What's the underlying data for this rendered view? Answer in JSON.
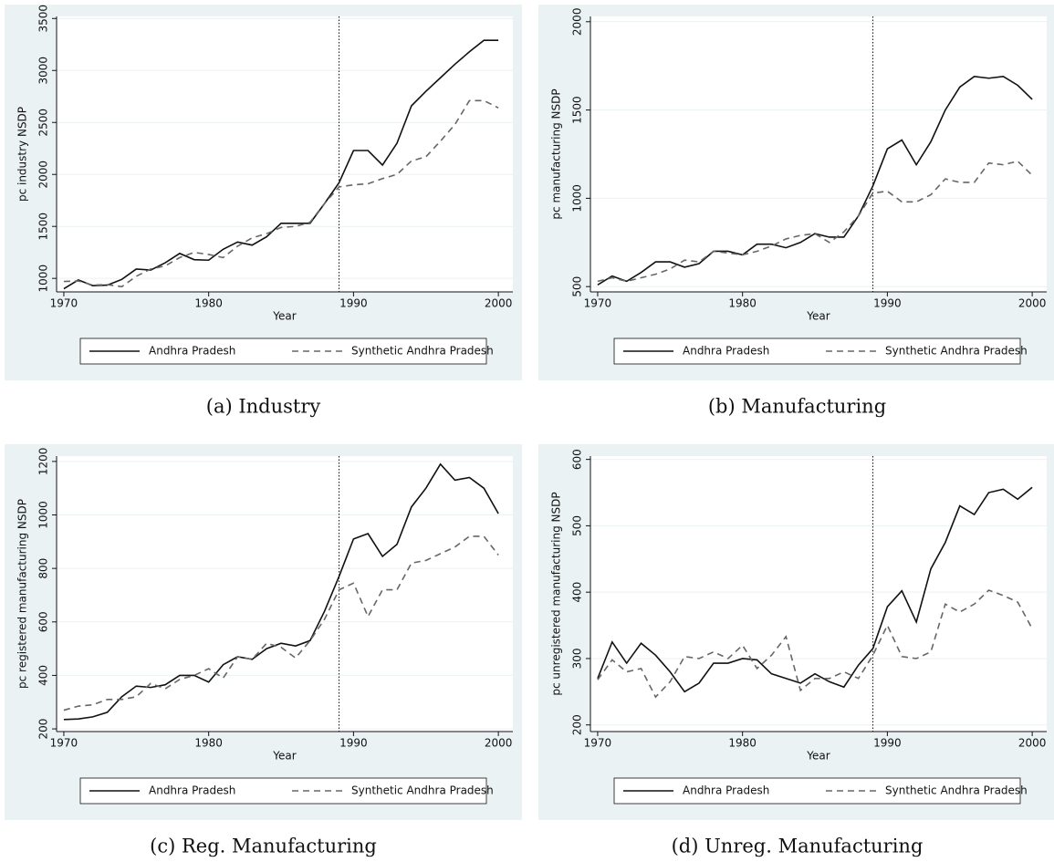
{
  "chart_data": [
    {
      "type": "line",
      "caption": "(a) Industry",
      "ylabel": "pc industry NSDP",
      "xlabel": "Year",
      "x": [
        1970,
        1971,
        1972,
        1973,
        1974,
        1975,
        1976,
        1977,
        1978,
        1979,
        1980,
        1981,
        1982,
        1983,
        1984,
        1985,
        1986,
        1987,
        1988,
        1989,
        1990,
        1991,
        1992,
        1993,
        1994,
        1995,
        1996,
        1997,
        1998,
        1999,
        2000
      ],
      "series": [
        {
          "name": "Andhra Pradesh",
          "color": "#111111",
          "dash": false,
          "values": [
            900,
            985,
            930,
            935,
            990,
            1090,
            1080,
            1150,
            1240,
            1180,
            1175,
            1280,
            1350,
            1320,
            1400,
            1530,
            1530,
            1530,
            1720,
            1920,
            2230,
            2230,
            2090,
            2300,
            2660,
            2800,
            2930,
            3060,
            3180,
            3290,
            3290
          ]
        },
        {
          "name": "Synthetic Andhra Pradesh",
          "color": "#666666",
          "dash": true,
          "values": [
            970,
            975,
            935,
            940,
            920,
            1020,
            1090,
            1120,
            1200,
            1250,
            1230,
            1200,
            1310,
            1390,
            1430,
            1490,
            1500,
            1540,
            1720,
            1880,
            1900,
            1910,
            1960,
            2000,
            2130,
            2170,
            2320,
            2480,
            2710,
            2710,
            2640
          ]
        }
      ],
      "xlim": [
        1969.5,
        2001
      ],
      "xticks": [
        1970,
        1980,
        1990,
        2000
      ],
      "ylim": [
        870,
        3520
      ],
      "yticks": [
        1000,
        1500,
        2000,
        2500,
        3000,
        3500
      ],
      "grid": true,
      "vline": 1989
    },
    {
      "type": "line",
      "caption": "(b) Manufacturing",
      "ylabel": "pc manufacturing NSDP",
      "xlabel": "Year",
      "x": [
        1970,
        1971,
        1972,
        1973,
        1974,
        1975,
        1976,
        1977,
        1978,
        1979,
        1980,
        1981,
        1982,
        1983,
        1984,
        1985,
        1986,
        1987,
        1988,
        1989,
        1990,
        1991,
        1992,
        1993,
        1994,
        1995,
        1996,
        1997,
        1998,
        1999,
        2000
      ],
      "series": [
        {
          "name": "Andhra Pradesh",
          "color": "#111111",
          "dash": false,
          "values": [
            510,
            560,
            530,
            580,
            640,
            640,
            610,
            630,
            700,
            700,
            680,
            740,
            740,
            720,
            750,
            800,
            780,
            780,
            900,
            1070,
            1280,
            1330,
            1190,
            1320,
            1500,
            1630,
            1690,
            1680,
            1690,
            1640,
            1560
          ]
        },
        {
          "name": "Synthetic Andhra Pradesh",
          "color": "#666666",
          "dash": true,
          "values": [
            530,
            550,
            530,
            550,
            570,
            600,
            650,
            640,
            700,
            690,
            680,
            700,
            730,
            770,
            790,
            800,
            750,
            810,
            900,
            1030,
            1040,
            980,
            980,
            1020,
            1110,
            1090,
            1090,
            1200,
            1190,
            1210,
            1130
          ]
        }
      ],
      "xlim": [
        1969.5,
        2001
      ],
      "xticks": [
        1970,
        1980,
        1990,
        2000
      ],
      "ylim": [
        470,
        2030
      ],
      "yticks": [
        500,
        1000,
        1500,
        2000
      ],
      "grid": true,
      "vline": 1989
    },
    {
      "type": "line",
      "caption": "(c) Reg. Manufacturing",
      "ylabel": "pc registered manufacturing NSDP",
      "xlabel": "Year",
      "x": [
        1970,
        1971,
        1972,
        1973,
        1974,
        1975,
        1976,
        1977,
        1978,
        1979,
        1980,
        1981,
        1982,
        1983,
        1984,
        1985,
        1986,
        1987,
        1988,
        1989,
        1990,
        1991,
        1992,
        1993,
        1994,
        1995,
        1996,
        1997,
        1998,
        1999,
        2000
      ],
      "series": [
        {
          "name": "Andhra Pradesh",
          "color": "#111111",
          "dash": false,
          "values": [
            235,
            237,
            245,
            262,
            320,
            360,
            355,
            365,
            400,
            400,
            375,
            440,
            470,
            460,
            500,
            520,
            510,
            530,
            640,
            770,
            910,
            930,
            845,
            890,
            1030,
            1100,
            1190,
            1130,
            1140,
            1100,
            1005
          ]
        },
        {
          "name": "Synthetic Andhra Pradesh",
          "color": "#666666",
          "dash": true,
          "values": [
            270,
            285,
            290,
            310,
            310,
            320,
            370,
            350,
            385,
            400,
            425,
            390,
            470,
            460,
            520,
            505,
            465,
            530,
            610,
            720,
            745,
            620,
            720,
            720,
            820,
            830,
            855,
            880,
            920,
            920,
            850
          ]
        }
      ],
      "xlim": [
        1969.5,
        2001
      ],
      "xticks": [
        1970,
        1980,
        1990,
        2000
      ],
      "ylim": [
        190,
        1220
      ],
      "yticks": [
        200,
        400,
        600,
        800,
        1000,
        1200
      ],
      "grid": true,
      "vline": 1989
    },
    {
      "type": "line",
      "caption": "(d) Unreg. Manufacturing",
      "ylabel": "pc unregistered manufacturing NSDP",
      "xlabel": "Year",
      "x": [
        1970,
        1971,
        1972,
        1973,
        1974,
        1975,
        1976,
        1977,
        1978,
        1979,
        1980,
        1981,
        1982,
        1983,
        1984,
        1985,
        1986,
        1987,
        1988,
        1989,
        1990,
        1991,
        1992,
        1993,
        1994,
        1995,
        1996,
        1997,
        1998,
        1999,
        2000
      ],
      "series": [
        {
          "name": "Andhra Pradesh",
          "color": "#111111",
          "dash": false,
          "values": [
            270,
            325,
            293,
            323,
            305,
            280,
            250,
            263,
            293,
            293,
            300,
            298,
            277,
            270,
            263,
            277,
            265,
            257,
            290,
            315,
            378,
            402,
            355,
            435,
            475,
            530,
            517,
            550,
            555,
            540,
            558
          ]
        },
        {
          "name": "Synthetic Andhra Pradesh",
          "color": "#666666",
          "dash": true,
          "values": [
            268,
            298,
            280,
            285,
            242,
            265,
            303,
            300,
            310,
            300,
            320,
            285,
            305,
            333,
            252,
            270,
            270,
            280,
            270,
            305,
            350,
            303,
            300,
            310,
            382,
            370,
            382,
            403,
            395,
            385,
            345
          ]
        }
      ],
      "xlim": [
        1969.5,
        2001
      ],
      "xticks": [
        1970,
        1980,
        1990,
        2000
      ],
      "ylim": [
        190,
        605
      ],
      "yticks": [
        200,
        300,
        400,
        500,
        600
      ],
      "grid": true,
      "vline": 1989
    }
  ]
}
